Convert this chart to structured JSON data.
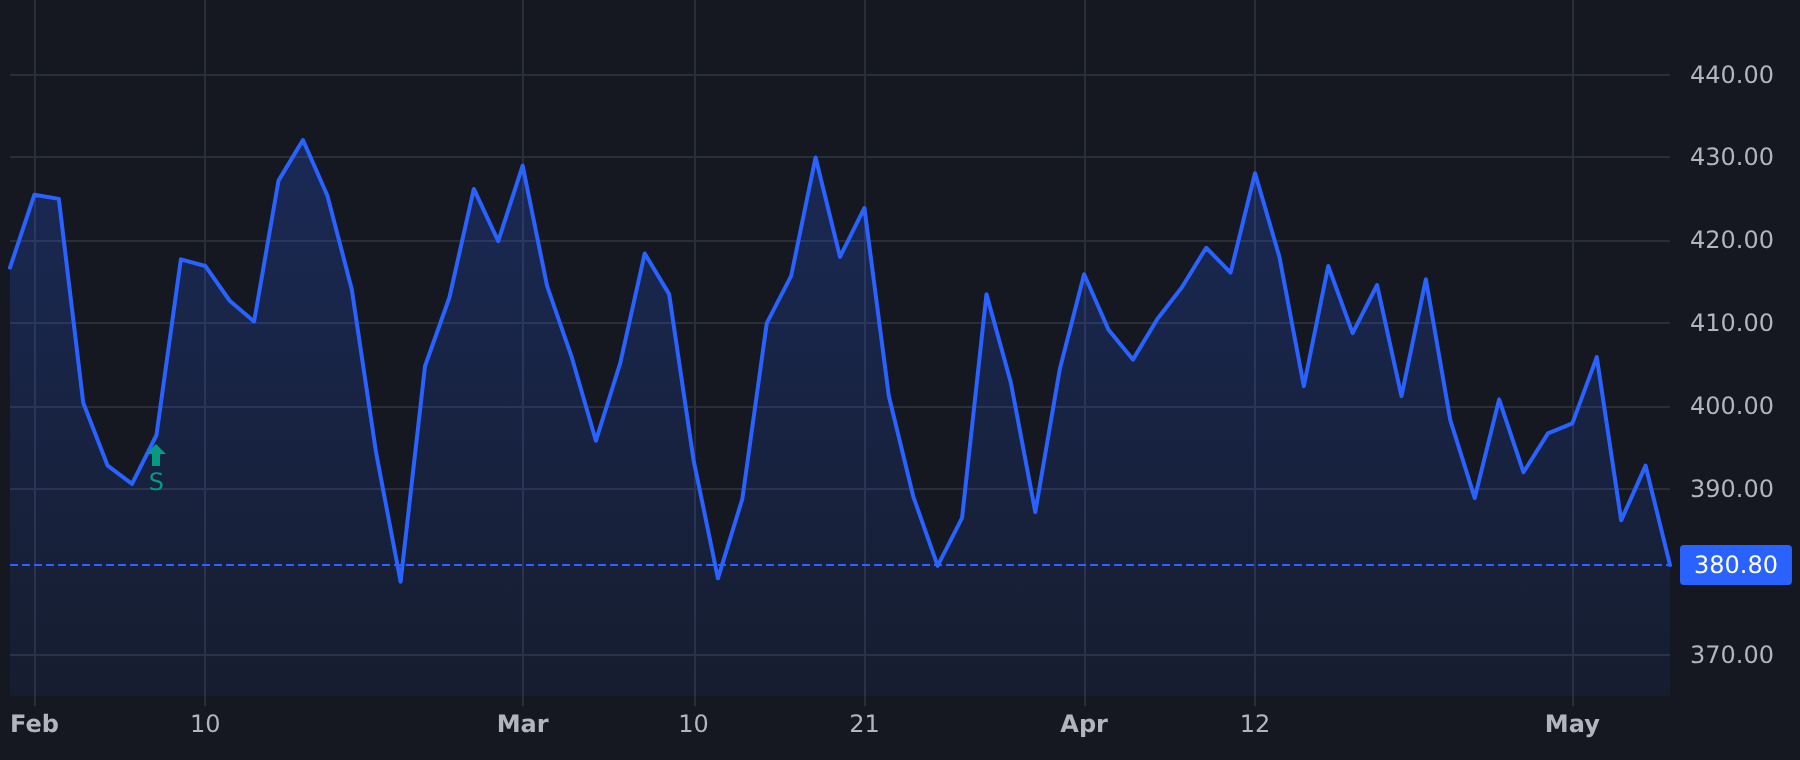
{
  "chart_data": {
    "type": "area",
    "categories": [
      null,
      "Feb",
      null,
      null,
      null,
      null,
      null,
      null,
      "10",
      null,
      null,
      null,
      null,
      null,
      null,
      null,
      null,
      null,
      null,
      null,
      null,
      "Mar",
      null,
      null,
      null,
      null,
      null,
      null,
      "10",
      null,
      null,
      null,
      null,
      null,
      null,
      "21",
      null,
      null,
      null,
      null,
      null,
      null,
      null,
      null,
      "Apr",
      null,
      null,
      null,
      null,
      null,
      null,
      "12",
      null,
      null,
      null,
      null,
      null,
      null,
      null,
      null,
      null,
      null,
      null,
      null,
      "May",
      null,
      null,
      null,
      null
    ],
    "series": [
      {
        "color": "#2962ff",
        "values": [
          416.7,
          425.5,
          425.0,
          400.4,
          392.8,
          390.6,
          396.5,
          417.7,
          416.9,
          412.7,
          410.2,
          427.2,
          432.1,
          425.4,
          414.1,
          394.3,
          378.8,
          404.8,
          413.1,
          426.2,
          419.9,
          429.0,
          414.5,
          406.0,
          395.8,
          405.2,
          418.4,
          413.5,
          393.5,
          379.2,
          388.8,
          410.0,
          415.7,
          430.0,
          418.0,
          423.9,
          401.2,
          389.1,
          380.7,
          386.5,
          413.5,
          402.8,
          387.2,
          404.4,
          415.9,
          409.2,
          405.6,
          410.5,
          414.3,
          419.1,
          416.1,
          428.1,
          418.0,
          402.4,
          416.9,
          408.8,
          414.6,
          401.2,
          415.3,
          398.3,
          388.9,
          400.8,
          392.0,
          396.7,
          397.9,
          405.9,
          386.2,
          392.8,
          380.8
        ]
      }
    ],
    "ylim": [
      365,
      449
    ],
    "yticks": [
      {
        "value": 370,
        "label": "370.00"
      },
      {
        "value": 390,
        "label": "390.00"
      },
      {
        "value": 400,
        "label": "400.00"
      },
      {
        "value": 410,
        "label": "410.00"
      },
      {
        "value": 420,
        "label": "420.00"
      },
      {
        "value": 430,
        "label": "430.00"
      },
      {
        "value": 440,
        "label": "440.00"
      }
    ],
    "ref_lines": [
      {
        "axis": "y",
        "value": 380.8,
        "label": "380.80",
        "color": "#2962ff",
        "line_style": "dashed"
      }
    ],
    "annotations": [
      {
        "text": "S",
        "y": 396.5
      }
    ],
    "grid": true,
    "marker": "none",
    "line_style": "solid"
  }
}
